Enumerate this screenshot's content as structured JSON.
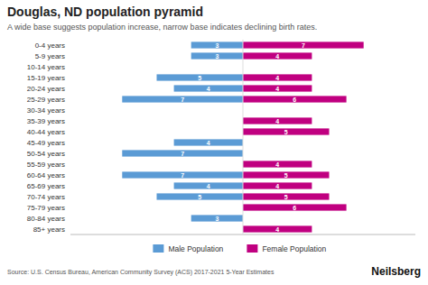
{
  "chart_data": {
    "type": "pyramid",
    "orientation": "horizontal",
    "title": "Douglas, ND population pyramid",
    "subtitle": "A wide base suggests population increase, narrow base indicates declining birth rates.",
    "annotations": [
      "Source: U.S. Census Bureau, American Community Survey (ACS) 2017-2021 5-Year Estimates",
      "Neilsberg"
    ],
    "categories": [
      "85+ years",
      "80-84 years",
      "75-79 years",
      "70-74 years",
      "65-69 years",
      "60-64 years",
      "55-59 years",
      "50-54 years",
      "45-49 years",
      "40-44 years",
      "35-39 years",
      "30-34 years",
      "25-29 years",
      "20-24 years",
      "15-19 years",
      "10-14 years",
      "5-9 years",
      "0-4 years"
    ],
    "series": [
      {
        "name": "Male Population",
        "color": "#5b9bd5",
        "values": [
          0,
          3,
          0,
          5,
          4,
          7,
          0,
          7,
          4,
          0,
          0,
          0,
          7,
          4,
          5,
          0,
          3,
          3
        ]
      },
      {
        "name": "Female Population",
        "color": "#c00080",
        "values": [
          4,
          0,
          6,
          5,
          4,
          5,
          4,
          0,
          0,
          5,
          4,
          0,
          6,
          4,
          4,
          0,
          4,
          7
        ]
      }
    ],
    "xlim": [
      -10,
      10
    ],
    "xticks": [],
    "tick_labels": "y",
    "grid": false,
    "legend": "bottom",
    "data_labels": true
  }
}
